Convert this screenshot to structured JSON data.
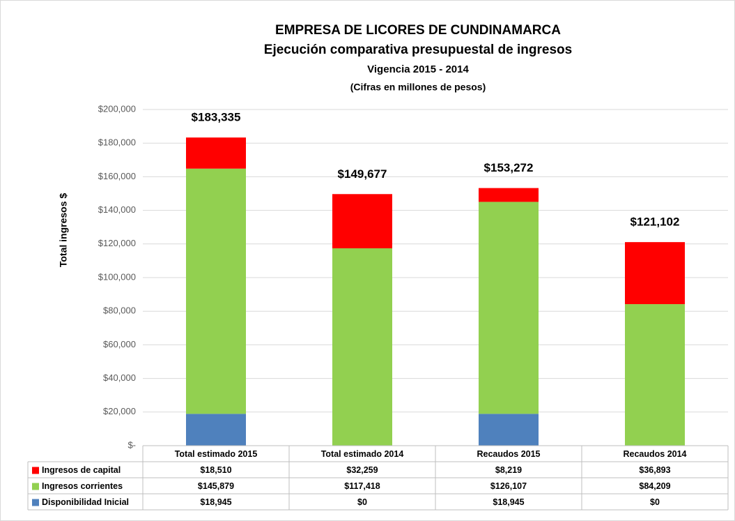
{
  "chart_data": {
    "type": "stacked_bar",
    "title": "EMPRESA DE LICORES DE CUNDINAMARCA",
    "subtitle": "Ejecución comparativa presupuestal de ingresos",
    "subtitle2": "Vigencia 2015 - 2014",
    "note": "(Cifras en millones de pesos)",
    "ylabel": "Total ingresos $",
    "categories": [
      "Total estimado 2015",
      "Total estimado 2014",
      "Recaudos 2015",
      "Recaudos 2014"
    ],
    "series": [
      {
        "name": "Ingresos de capital",
        "color": "#ff0000",
        "values": [
          18510,
          32259,
          8219,
          36893
        ],
        "value_labels": [
          "$18,510",
          "$32,259",
          "$8,219",
          "$36,893"
        ]
      },
      {
        "name": "Ingresos corrientes",
        "color": "#92d050",
        "values": [
          145879,
          117418,
          126107,
          84209
        ],
        "value_labels": [
          "$145,879",
          "$117,418",
          "$126,107",
          "$84,209"
        ]
      },
      {
        "name": "Disponibilidad Inicial",
        "color": "#4f81bd",
        "values": [
          18945,
          0,
          18945,
          0
        ],
        "value_labels": [
          "$18,945",
          "$0",
          "$18,945",
          "$0"
        ]
      }
    ],
    "totals": [
      183335,
      149677,
      153272,
      121102
    ],
    "total_labels": [
      "$183,335",
      "$149,677",
      "$153,272",
      "$121,102"
    ],
    "ylim": [
      0,
      200000
    ],
    "yticks": [
      {
        "value": 0,
        "label": "$-"
      },
      {
        "value": 20000,
        "label": "$20,000"
      },
      {
        "value": 40000,
        "label": "$40,000"
      },
      {
        "value": 60000,
        "label": "$60,000"
      },
      {
        "value": 80000,
        "label": "$80,000"
      },
      {
        "value": 100000,
        "label": "$100,000"
      },
      {
        "value": 120000,
        "label": "$120,000"
      },
      {
        "value": 140000,
        "label": "$140,000"
      },
      {
        "value": 160000,
        "label": "$160,000"
      },
      {
        "value": 180000,
        "label": "$180,000"
      },
      {
        "value": 200000,
        "label": "$200,000"
      }
    ],
    "grid": true
  }
}
